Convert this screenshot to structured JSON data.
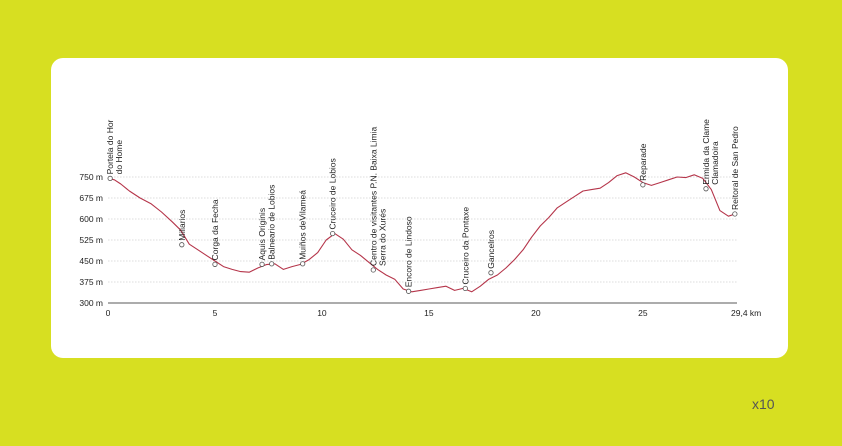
{
  "footer": {
    "zoom_label": "x10"
  },
  "colors": {
    "background": "#d7df21",
    "card": "#ffffff",
    "profile_line": "#b5354a",
    "grid": "#bbbbbb"
  },
  "chart_data": {
    "type": "line",
    "title": "",
    "xlabel": "",
    "ylabel": "",
    "xlim": [
      0,
      29.4
    ],
    "ylim": [
      300,
      750
    ],
    "grid": true,
    "y_ticks": [
      {
        "value": 750,
        "label": "750 m"
      },
      {
        "value": 675,
        "label": "675 m"
      },
      {
        "value": 600,
        "label": "600 m"
      },
      {
        "value": 525,
        "label": "525 m"
      },
      {
        "value": 450,
        "label": "450 m"
      },
      {
        "value": 375,
        "label": "375 m"
      },
      {
        "value": 300,
        "label": "300 m"
      }
    ],
    "x_ticks": [
      {
        "value": 0,
        "label": "0"
      },
      {
        "value": 5,
        "label": "5"
      },
      {
        "value": 10,
        "label": "10"
      },
      {
        "value": 15,
        "label": "15"
      },
      {
        "value": 20,
        "label": "20"
      },
      {
        "value": 25,
        "label": "25"
      },
      {
        "value": 29.4,
        "label": "29,4 km"
      }
    ],
    "profile": {
      "x": [
        0,
        0.3,
        0.6,
        1.0,
        1.5,
        2.0,
        2.5,
        3.0,
        3.4,
        3.8,
        4.2,
        4.6,
        5.0,
        5.4,
        5.8,
        6.2,
        6.6,
        7.0,
        7.4,
        7.8,
        8.2,
        8.6,
        9.0,
        9.4,
        9.8,
        10.2,
        10.6,
        11.0,
        11.4,
        11.8,
        12.2,
        12.6,
        13.0,
        13.4,
        13.8,
        14.2,
        14.6,
        15.0,
        15.4,
        15.8,
        16.2,
        16.6,
        17.0,
        17.4,
        17.8,
        18.2,
        18.6,
        19.0,
        19.4,
        19.8,
        20.2,
        20.6,
        21.0,
        21.4,
        21.8,
        22.2,
        22.6,
        23.0,
        23.4,
        23.8,
        24.2,
        24.6,
        25.0,
        25.4,
        25.8,
        26.2,
        26.6,
        27.0,
        27.4,
        27.8,
        28.2,
        28.6,
        29.0,
        29.4
      ],
      "y": [
        745,
        740,
        725,
        700,
        675,
        655,
        625,
        590,
        560,
        510,
        490,
        470,
        450,
        430,
        420,
        412,
        410,
        425,
        437,
        440,
        420,
        430,
        438,
        455,
        480,
        525,
        548,
        528,
        490,
        470,
        445,
        420,
        400,
        385,
        350,
        340,
        345,
        350,
        355,
        360,
        345,
        352,
        340,
        360,
        385,
        400,
        425,
        455,
        490,
        535,
        575,
        605,
        640,
        660,
        680,
        700,
        705,
        710,
        730,
        755,
        765,
        750,
        730,
        720,
        730,
        740,
        750,
        748,
        758,
        745,
        705,
        630,
        610,
        620
      ]
    },
    "points_of_interest": [
      {
        "x": 0.1,
        "y": 745,
        "label_lines": [
          "Portela do Hor",
          "do Home"
        ]
      },
      {
        "x": 3.45,
        "y": 508,
        "label_lines": [
          "Miliarios"
        ]
      },
      {
        "x": 5.0,
        "y": 438,
        "label_lines": [
          "Corga da Fecha"
        ]
      },
      {
        "x": 7.2,
        "y": 438,
        "label_lines": [
          "Aquis Originis"
        ]
      },
      {
        "x": 7.65,
        "y": 440,
        "label_lines": [
          "Balneario de Lobios"
        ]
      },
      {
        "x": 9.1,
        "y": 440,
        "label_lines": [
          "Muiños deVilameá"
        ]
      },
      {
        "x": 10.5,
        "y": 548,
        "label_lines": [
          "Cruceiro de Lobios"
        ]
      },
      {
        "x": 12.4,
        "y": 418,
        "label_lines": [
          "Centro de visitantes P.N. Baixa Limia",
          "Serra do Xurés"
        ]
      },
      {
        "x": 14.05,
        "y": 342,
        "label_lines": [
          "Encoro de Lindoso"
        ]
      },
      {
        "x": 16.7,
        "y": 352,
        "label_lines": [
          "Cruceiro da Pontaxe"
        ]
      },
      {
        "x": 17.9,
        "y": 408,
        "label_lines": [
          "Gancelros"
        ]
      },
      {
        "x": 25.0,
        "y": 722,
        "label_lines": [
          "Reparade"
        ]
      },
      {
        "x": 27.95,
        "y": 708,
        "label_lines": [
          "Ermida da Clame",
          "Clamadoira"
        ]
      },
      {
        "x": 29.3,
        "y": 618,
        "label_lines": [
          "Reitoral de San Pedro"
        ]
      }
    ]
  }
}
